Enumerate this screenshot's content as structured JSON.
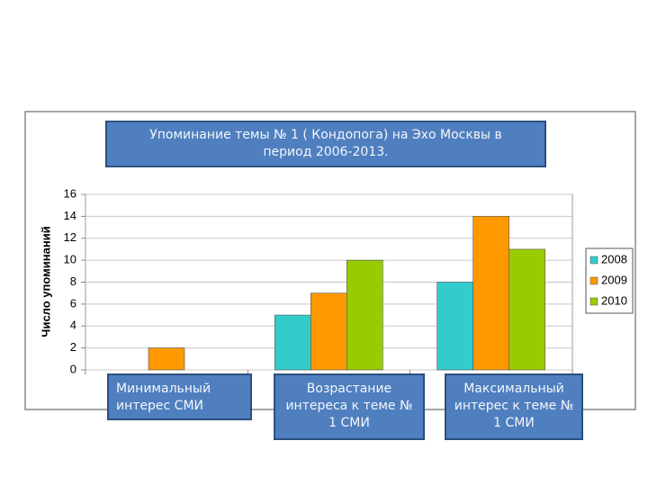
{
  "chart_data": {
    "type": "bar",
    "title": "Упоминание темы № 1 ( Кондопога) на Эхо Москвы в период 2006-2013.",
    "y_label": "Число упоминаний",
    "categories": [
      "Минимальный интерес СМИ",
      "Возрастание интереса к теме № 1 СМИ",
      "Максимальный интерес к теме № 1 СМИ"
    ],
    "series": [
      {
        "name": "2008",
        "color": "#33cccc",
        "values": [
          0,
          5,
          8
        ]
      },
      {
        "name": "2009",
        "color": "#ff9900",
        "values": [
          2,
          7,
          14
        ]
      },
      {
        "name": "2010",
        "color": "#99cc00",
        "values": [
          0,
          10,
          11
        ]
      }
    ],
    "ylim": [
      0,
      16
    ],
    "yticks": [
      0,
      2,
      4,
      6,
      8,
      10,
      12,
      14,
      16
    ],
    "grid": true,
    "legend": "right"
  }
}
